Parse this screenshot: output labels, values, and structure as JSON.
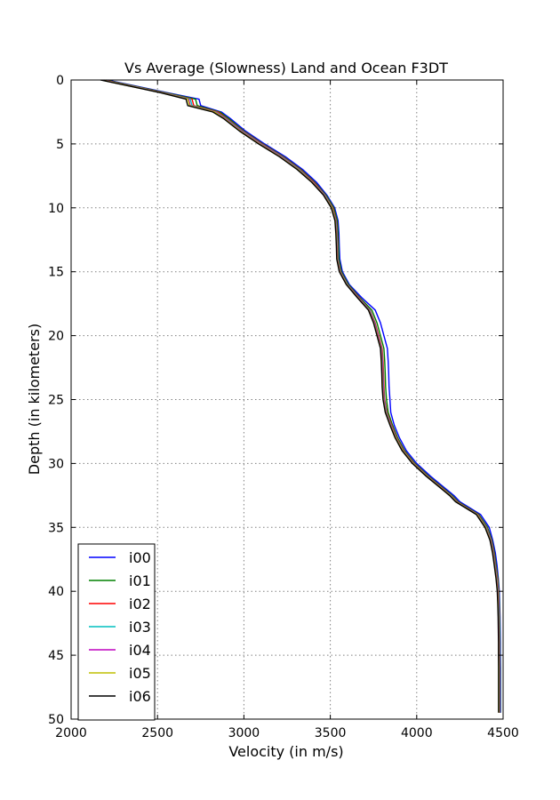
{
  "chart_data": {
    "type": "line",
    "title": "Vs Average (Slowness) Land and Ocean F3DT",
    "xlabel": "Velocity (in m/s)",
    "ylabel": "Depth (in kilometers)",
    "xlim": [
      2000,
      4500
    ],
    "ylim": [
      0,
      50
    ],
    "y_inverted": true,
    "x_ticks": [
      "2000",
      "2500",
      "3000",
      "3500",
      "4000",
      "4500"
    ],
    "y_ticks": [
      "0",
      "5",
      "10",
      "15",
      "20",
      "25",
      "30",
      "35",
      "40",
      "45",
      "50"
    ],
    "grid": true,
    "legend_position": "lower-left",
    "depth": [
      0,
      1,
      1.5,
      2,
      2.5,
      3,
      4,
      5,
      6,
      7,
      8,
      9,
      10,
      11,
      12,
      13,
      14,
      15,
      16,
      17,
      18,
      19,
      20,
      21,
      22,
      23,
      24,
      25,
      26,
      27,
      28,
      29,
      30,
      31,
      32,
      32.5,
      33,
      34,
      35,
      36,
      37,
      38,
      39,
      40,
      41,
      42,
      43,
      44,
      45,
      46,
      47,
      48,
      49,
      49.5
    ],
    "series": [
      {
        "name": "i00",
        "color": "#0000ff",
        "values": [
          2210,
          2560,
          2740,
          2750,
          2870,
          2920,
          3010,
          3120,
          3240,
          3340,
          3420,
          3480,
          3525,
          3545,
          3550,
          3552,
          3555,
          3570,
          3610,
          3680,
          3760,
          3790,
          3810,
          3830,
          3835,
          3838,
          3840,
          3845,
          3850,
          3870,
          3900,
          3940,
          4000,
          4080,
          4170,
          4215,
          4250,
          4370,
          4420,
          4440,
          4455,
          4465,
          4472,
          4478,
          4480,
          4482,
          4483,
          4484,
          4484,
          4485,
          4485,
          4485,
          4485,
          4485
        ]
      },
      {
        "name": "i01",
        "color": "#008000",
        "values": [
          2200,
          2550,
          2720,
          2730,
          2860,
          2910,
          3000,
          3110,
          3230,
          3330,
          3410,
          3475,
          3520,
          3540,
          3545,
          3548,
          3550,
          3565,
          3605,
          3670,
          3740,
          3770,
          3790,
          3810,
          3815,
          3818,
          3820,
          3825,
          3835,
          3860,
          3890,
          3930,
          3990,
          4070,
          4160,
          4205,
          4240,
          4360,
          4410,
          4435,
          4450,
          4460,
          4470,
          4476,
          4478,
          4480,
          4481,
          4482,
          4482,
          4483,
          4483,
          4483,
          4483,
          4483
        ]
      },
      {
        "name": "i02",
        "color": "#ff0000",
        "values": [
          2190,
          2540,
          2700,
          2710,
          2850,
          2900,
          2995,
          3105,
          3225,
          3325,
          3405,
          3470,
          3515,
          3535,
          3540,
          3543,
          3545,
          3560,
          3600,
          3665,
          3730,
          3760,
          3780,
          3800,
          3805,
          3808,
          3810,
          3815,
          3828,
          3855,
          3885,
          3925,
          3985,
          4065,
          4155,
          4200,
          4235,
          4355,
          4405,
          4432,
          4447,
          4457,
          4467,
          4474,
          4476,
          4478,
          4479,
          4480,
          4480,
          4481,
          4481,
          4481,
          4481,
          4481
        ]
      },
      {
        "name": "i03",
        "color": "#00bfbf",
        "values": [
          2185,
          2535,
          2690,
          2700,
          2840,
          2895,
          2990,
          3100,
          3220,
          3320,
          3400,
          3468,
          3512,
          3533,
          3538,
          3541,
          3543,
          3558,
          3598,
          3662,
          3728,
          3757,
          3777,
          3797,
          3802,
          3805,
          3807,
          3812,
          3825,
          3852,
          3882,
          3922,
          3982,
          4062,
          4152,
          4198,
          4232,
          4352,
          4403,
          4430,
          4445,
          4455,
          4465,
          4472,
          4475,
          4477,
          4478,
          4479,
          4479,
          4480,
          4480,
          4480,
          4480,
          4480
        ]
      },
      {
        "name": "i04",
        "color": "#bf00bf",
        "values": [
          2180,
          2530,
          2680,
          2690,
          2835,
          2890,
          2985,
          3095,
          3215,
          3315,
          3398,
          3465,
          3510,
          3531,
          3536,
          3539,
          3541,
          3556,
          3596,
          3660,
          3725,
          3755,
          3775,
          3795,
          3800,
          3803,
          3805,
          3810,
          3822,
          3850,
          3880,
          3920,
          3980,
          4060,
          4150,
          4195,
          4230,
          4350,
          4400,
          4428,
          4443,
          4453,
          4463,
          4470,
          4473,
          4475,
          4476,
          4477,
          4477,
          4478,
          4478,
          4478,
          4478,
          4478
        ]
      },
      {
        "name": "i05",
        "color": "#bfbf00",
        "values": [
          2175,
          2525,
          2675,
          2685,
          2830,
          2885,
          2980,
          3090,
          3210,
          3312,
          3395,
          3462,
          3508,
          3529,
          3534,
          3537,
          3539,
          3554,
          3594,
          3657,
          3722,
          3752,
          3772,
          3792,
          3797,
          3800,
          3802,
          3807,
          3820,
          3847,
          3878,
          3918,
          3978,
          4058,
          4148,
          4193,
          4228,
          4348,
          4398,
          4426,
          4441,
          4451,
          4461,
          4468,
          4471,
          4473,
          4474,
          4475,
          4475,
          4476,
          4476,
          4476,
          4476,
          4476
        ]
      },
      {
        "name": "i06",
        "color": "#000000",
        "values": [
          2170,
          2520,
          2665,
          2675,
          2820,
          2880,
          2975,
          3085,
          3205,
          3308,
          3392,
          3460,
          3505,
          3527,
          3532,
          3535,
          3537,
          3552,
          3592,
          3655,
          3720,
          3750,
          3770,
          3790,
          3795,
          3798,
          3800,
          3805,
          3818,
          3845,
          3875,
          3915,
          3975,
          4055,
          4145,
          4190,
          4225,
          4345,
          4395,
          4424,
          4439,
          4449,
          4459,
          4466,
          4469,
          4471,
          4472,
          4473,
          4473,
          4474,
          4474,
          4474,
          4474,
          4474
        ]
      }
    ]
  }
}
